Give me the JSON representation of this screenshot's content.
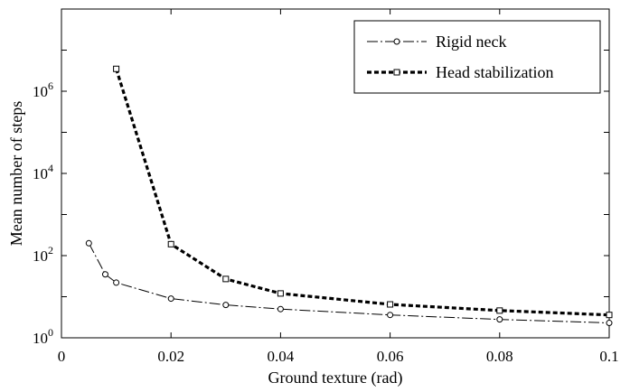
{
  "chart_data": {
    "type": "line",
    "title": "",
    "xlabel": "Ground texture (rad)",
    "ylabel": "Mean number of steps",
    "xlim": [
      0,
      0.1
    ],
    "ylim": [
      1,
      100000000
    ],
    "yscale": "log",
    "grid": false,
    "legend_position": "top-right",
    "x_ticks": [
      {
        "value": 0,
        "label": "0"
      },
      {
        "value": 0.02,
        "label": "0.02"
      },
      {
        "value": 0.04,
        "label": "0.04"
      },
      {
        "value": 0.06,
        "label": "0.06"
      },
      {
        "value": 0.08,
        "label": "0.08"
      },
      {
        "value": 0.1,
        "label": "0.1"
      }
    ],
    "y_ticks": [
      {
        "value": 1,
        "base": "10",
        "exp": "0"
      },
      {
        "value": 100,
        "base": "10",
        "exp": "2"
      },
      {
        "value": 10000,
        "base": "10",
        "exp": "4"
      },
      {
        "value": 1000000,
        "base": "10",
        "exp": "6"
      }
    ],
    "series": [
      {
        "name": "Rigid neck",
        "marker": "circle",
        "line": "dash-dot",
        "color": "#000000",
        "x": [
          0.005,
          0.008,
          0.01,
          0.02,
          0.03,
          0.04,
          0.06,
          0.08,
          0.1
        ],
        "y": [
          200,
          35,
          22,
          9,
          6.3,
          5,
          3.6,
          2.8,
          2.3
        ]
      },
      {
        "name": "Head stabilization",
        "marker": "square",
        "line": "dotted-thick",
        "color": "#000000",
        "x": [
          0.01,
          0.02,
          0.03,
          0.04,
          0.06,
          0.08,
          0.1
        ],
        "y": [
          3500000,
          190,
          27,
          12,
          6.5,
          4.6,
          3.6
        ]
      }
    ]
  }
}
